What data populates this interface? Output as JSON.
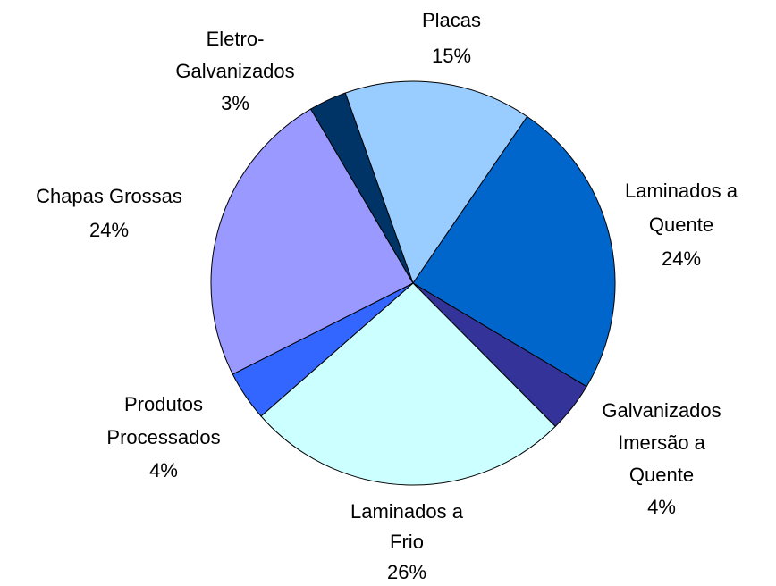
{
  "chart_data": {
    "type": "pie",
    "categories": [
      "Placas",
      "Laminados a\nQuente",
      "Galvanizados\nImersão a\nQuente",
      "Laminados a\nFrio",
      "Produtos\nProcessados",
      "Chapas Grossas",
      "Eletro-\nGalvanizados"
    ],
    "values": [
      15,
      24,
      4,
      26,
      4,
      24,
      3
    ],
    "value_labels": [
      "15%",
      "24%",
      "4%",
      "26%",
      "4%",
      "24%",
      "3%"
    ],
    "colors": [
      "#99ccff",
      "#0066cc",
      "#333399",
      "#ccffff",
      "#3366ff",
      "#9999ff",
      "#003366"
    ]
  }
}
